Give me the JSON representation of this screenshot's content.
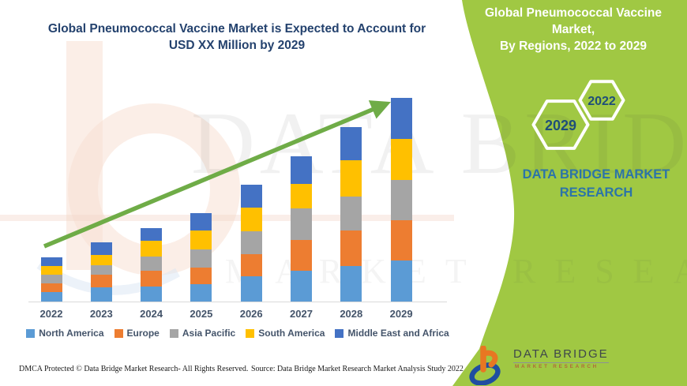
{
  "colors": {
    "title": "#24426e",
    "panel-green": "#a0c843",
    "arrow-green": "#6fac47",
    "brand-blue": "#2c74a8",
    "hex-text": "#1f4e79",
    "axis-text": "#44546a",
    "logo-orange": "#e87722",
    "logo-blue": "#1f4ea1"
  },
  "watermark": {
    "line1": "DATA BRIDGE",
    "line2": "MARKET RESEARCH"
  },
  "main": {
    "title_line1": "Global Pneumococcal Vaccine Market is Expected to Account for",
    "title_line2": "USD XX Million by 2029",
    "footer_dmca": "DMCA Protected © Data Bridge Market Research- All Rights Reserved.",
    "footer_source": "Source: Data Bridge Market Research Market Analysis Study 2022"
  },
  "chart_data": {
    "type": "bar",
    "stacked": true,
    "title": "Global Pneumococcal Vaccine Market is Expected to Account for USD XX Million by 2029",
    "xlabel": "",
    "ylabel": "",
    "value_axis_shown": false,
    "values_unit": "relative units (actual values shown as USD XX Million)",
    "legend_position": "bottom",
    "categories": [
      "2022",
      "2023",
      "2024",
      "2025",
      "2026",
      "2027",
      "2028",
      "2029"
    ],
    "series": [
      {
        "name": "North America",
        "color": "#5b9bd5",
        "values": [
          12,
          18,
          19,
          22,
          32,
          39,
          45,
          52
        ]
      },
      {
        "name": "Europe",
        "color": "#ed7d31",
        "values": [
          11,
          16,
          20,
          21,
          28,
          39,
          45,
          51
        ]
      },
      {
        "name": "Asia Pacific",
        "color": "#a5a5a5",
        "values": [
          11,
          12,
          18,
          23,
          29,
          40,
          43,
          51
        ]
      },
      {
        "name": "South America",
        "color": "#ffc000",
        "values": [
          11,
          13,
          20,
          24,
          30,
          31,
          46,
          52
        ]
      },
      {
        "name": "Middle East and Africa",
        "color": "#4472c4",
        "values": [
          11,
          16,
          16,
          22,
          29,
          35,
          42,
          52
        ]
      }
    ],
    "totals": [
      56,
      75,
      93,
      112,
      148,
      184,
      221,
      258
    ],
    "trend_arrow": {
      "direction": "up",
      "color": "#6fac47"
    }
  },
  "panel": {
    "header_line1": "Global Pneumococcal Vaccine Market,",
    "header_line2": "By Regions, 2022 to 2029",
    "hexagons": [
      {
        "label": "2029"
      },
      {
        "label": "2022"
      }
    ],
    "brand_line1": "DATA BRIDGE MARKET",
    "brand_line2": "RESEARCH",
    "logo_name": "DATA BRIDGE",
    "logo_tagline": "MARKET RESEARCH"
  }
}
